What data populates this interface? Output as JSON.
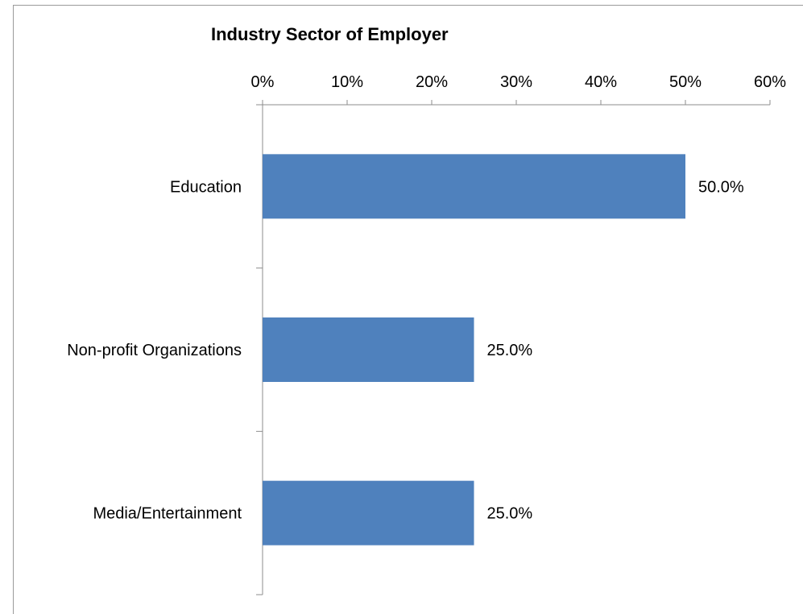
{
  "chart_data": {
    "type": "bar",
    "orientation": "horizontal",
    "title": "Industry Sector of Employer",
    "xlabel": "",
    "ylabel": "",
    "categories": [
      "Education",
      "Non-profit Organizations",
      "Media/Entertainment"
    ],
    "values": [
      50.0,
      25.0,
      25.0
    ],
    "data_labels": [
      "50.0%",
      "25.0%",
      "25.0%"
    ],
    "xlim": [
      0,
      60
    ],
    "x_ticks": [
      0,
      10,
      20,
      30,
      40,
      50,
      60
    ],
    "x_tick_labels": [
      "0%",
      "10%",
      "20%",
      "30%",
      "40%",
      "50%",
      "60%"
    ],
    "x_axis_position": "top",
    "grid": false,
    "legend": "none",
    "bar_color": "#4f81bd"
  }
}
